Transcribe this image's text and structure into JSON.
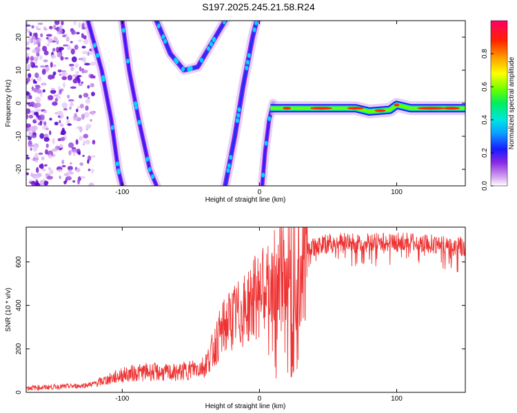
{
  "title": "S197.2025.245.21.58.R24",
  "chart_data": [
    {
      "type": "heatmap",
      "xlabel": "Height of straight line (km)",
      "ylabel": "Frequency (Hz)",
      "xlim": [
        -170,
        150
      ],
      "ylim": [
        -25,
        25
      ],
      "xticks": [
        -100,
        0,
        100
      ],
      "yticks": [
        -20,
        -10,
        0,
        10,
        20
      ],
      "colorbar": {
        "label": "Normalized spectral amplitude",
        "range": [
          0,
          1
        ],
        "ticks": [
          "0.0",
          "0.2",
          "0.4",
          "0.6",
          "0.8"
        ],
        "tick_values": [
          0.0,
          0.2,
          0.4,
          0.6,
          0.8
        ]
      },
      "features": [
        {
          "name": "scattered noise region",
          "x_range": [
            -170,
            -120
          ],
          "y_range": [
            -25,
            25
          ]
        },
        {
          "name": "left descending track",
          "points": [
            [
              -125,
              25
            ],
            [
              -115,
              10
            ],
            [
              -108,
              -5
            ],
            [
              -103,
              -20
            ],
            [
              -100,
              -25
            ]
          ]
        },
        {
          "name": "middle descending track",
          "points": [
            [
              -100,
              25
            ],
            [
              -95,
              10
            ],
            [
              -88,
              -5
            ],
            [
              -80,
              -20
            ],
            [
              -75,
              -25
            ]
          ]
        },
        {
          "name": "arc echo",
          "points": [
            [
              -75,
              25
            ],
            [
              -65,
              15
            ],
            [
              -55,
              10
            ],
            [
              -45,
              11
            ],
            [
              -35,
              18
            ],
            [
              -25,
              25
            ]
          ]
        },
        {
          "name": "steep ascending track",
          "points": [
            [
              -25,
              -25
            ],
            [
              -18,
              -10
            ],
            [
              -12,
              5
            ],
            [
              -5,
              20
            ],
            [
              -2,
              25
            ]
          ]
        },
        {
          "name": "short low track",
          "points": [
            [
              2,
              -25
            ],
            [
              4,
              -15
            ],
            [
              7,
              -5
            ],
            [
              10,
              0
            ]
          ]
        },
        {
          "name": "horizontal stationary band",
          "points": [
            [
              8,
              -1.5
            ],
            [
              40,
              -1.5
            ],
            [
              70,
              -1.5
            ],
            [
              80,
              -2.5
            ],
            [
              95,
              -2
            ],
            [
              100,
              -0.5
            ],
            [
              110,
              -1.5
            ],
            [
              150,
              -1.5
            ]
          ]
        }
      ]
    },
    {
      "type": "line",
      "xlabel": "Height of straight line (km)",
      "ylabel": "SNR (10 * v/v)",
      "xlim": [
        -170,
        150
      ],
      "ylim": [
        0,
        760
      ],
      "xticks": [
        -100,
        0,
        100
      ],
      "yticks": [
        0,
        200,
        400,
        600
      ],
      "series": [
        {
          "name": "SNR",
          "color": "#ee3333",
          "x": [
            -170,
            -150,
            -130,
            -120,
            -110,
            -100,
            -90,
            -80,
            -70,
            -60,
            -50,
            -40,
            -35,
            -30,
            -25,
            -20,
            -15,
            -10,
            -5,
            0,
            5,
            10,
            15,
            20,
            25,
            30,
            35,
            40,
            50,
            60,
            70,
            80,
            90,
            100,
            110,
            120,
            130,
            140,
            150
          ],
          "values": [
            20,
            25,
            30,
            40,
            60,
            80,
            90,
            95,
            90,
            90,
            105,
            120,
            180,
            250,
            310,
            340,
            360,
            380,
            430,
            450,
            470,
            480,
            520,
            580,
            620,
            650,
            660,
            670,
            685,
            690,
            685,
            690,
            690,
            690,
            690,
            685,
            680,
            675,
            670
          ]
        }
      ]
    }
  ]
}
